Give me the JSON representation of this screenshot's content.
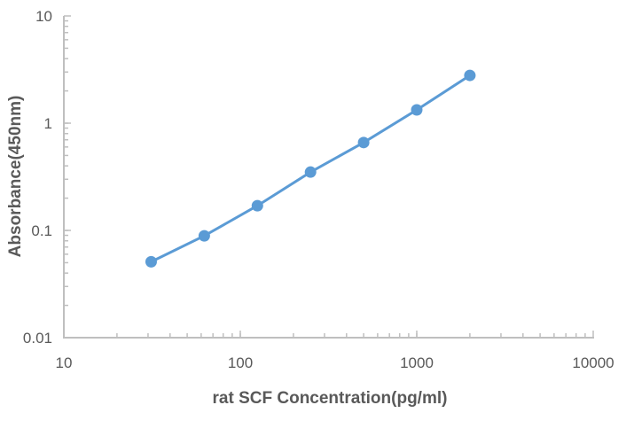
{
  "chart_data": {
    "type": "line",
    "title": "",
    "xlabel": "rat SCF Concentration(pg/ml)",
    "ylabel": "Absorbance(450nm)",
    "x_scale": "log",
    "y_scale": "log",
    "xlim": [
      10,
      10000
    ],
    "ylim": [
      0.01,
      10
    ],
    "x_ticks": [
      "10",
      "100",
      "1000",
      "10000"
    ],
    "y_ticks": [
      "0.01",
      "0.1",
      "1",
      "10"
    ],
    "grid": false,
    "legend": "none",
    "series": [
      {
        "color": "#5b9bd5",
        "marker": "circle",
        "x": [
          31.25,
          62.5,
          125,
          250,
          500,
          1000,
          2000
        ],
        "y": [
          0.051,
          0.089,
          0.17,
          0.35,
          0.66,
          1.33,
          2.79
        ]
      }
    ]
  }
}
